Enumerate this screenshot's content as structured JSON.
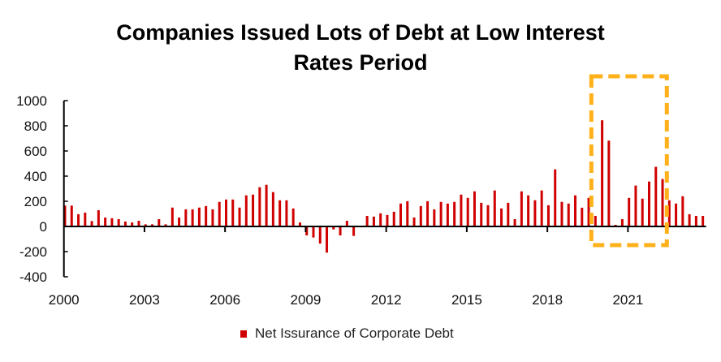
{
  "chart_data": {
    "type": "bar",
    "title_lines": [
      "Companies Issued Lots of Debt at Low Interest",
      "Rates Period"
    ],
    "xlabel": "",
    "ylabel": "",
    "ylim": [
      -400,
      1000
    ],
    "yticks": [
      -400,
      -200,
      0,
      200,
      400,
      600,
      800,
      1000
    ],
    "xtick_labels": [
      "2000",
      "2003",
      "2006",
      "2009",
      "2012",
      "2015",
      "2018",
      "2021"
    ],
    "x_start": "2000 Q1",
    "x_frequency": "quarterly",
    "grid": false,
    "legend_position": "bottom",
    "series": [
      {
        "name": "Net Issurance of Corporate Debt",
        "color": "#D00000",
        "values": [
          166,
          166,
          97,
          110,
          43,
          129,
          71,
          65,
          58,
          39,
          32,
          45,
          17,
          17,
          58,
          17,
          150,
          71,
          136,
          136,
          150,
          162,
          136,
          195,
          214,
          214,
          150,
          247,
          253,
          312,
          331,
          273,
          208,
          208,
          143,
          32,
          -71,
          -88,
          -136,
          -208,
          -24,
          -71,
          45,
          -75,
          0,
          84,
          78,
          104,
          91,
          117,
          182,
          201,
          71,
          162,
          201,
          136,
          195,
          182,
          195,
          253,
          227,
          279,
          188,
          169,
          286,
          143,
          188,
          58,
          279,
          247,
          208,
          286,
          169,
          454,
          195,
          182,
          247,
          149,
          227,
          84,
          844,
          682,
          13,
          58,
          227,
          325,
          221,
          357,
          474,
          377,
          208,
          182,
          240,
          97,
          84,
          84
        ]
      }
    ],
    "annotation": {
      "type": "dashed-rectangle",
      "color": "#FFB11B",
      "from": "2019 Q4",
      "to": "2022 Q2"
    }
  }
}
